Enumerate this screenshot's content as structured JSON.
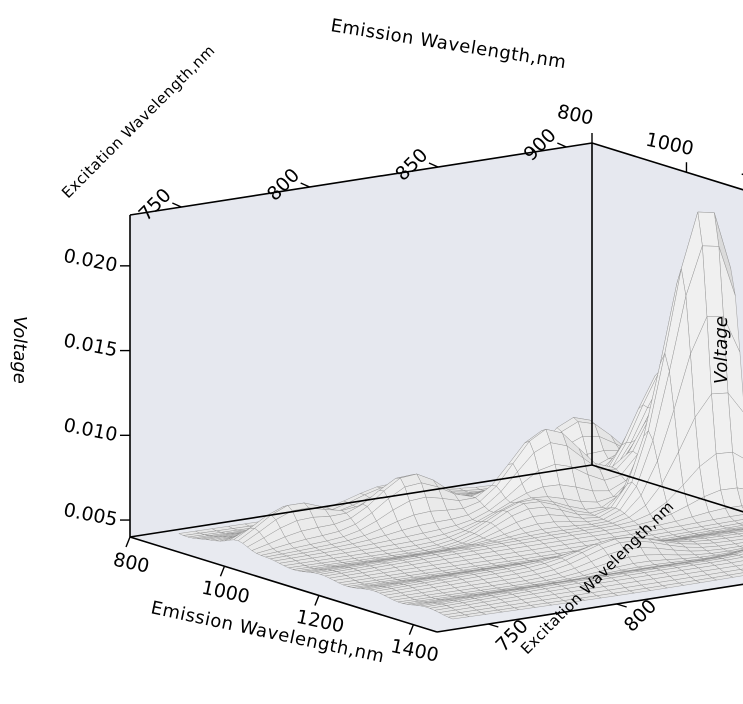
{
  "chart_data": {
    "type": "surface3d",
    "x": {
      "label": "Emission Wavelength,nm",
      "min": 800,
      "max": 1450,
      "ticks": [
        800,
        1000,
        1200,
        1400
      ],
      "tick_labels": [
        "800",
        "1000",
        "1200",
        "1400"
      ]
    },
    "y": {
      "label": "Excitation Wavelength,nm",
      "min": 730,
      "max": 910,
      "ticks": [
        750,
        800,
        850,
        900
      ],
      "tick_labels": [
        "750",
        "800",
        "850",
        "900"
      ]
    },
    "z": {
      "label": "Voltage",
      "min": 0.004,
      "max": 0.023,
      "ticks": [
        0.005,
        0.01,
        0.015,
        0.02
      ],
      "tick_labels": [
        "0.005",
        "0.010",
        "0.015",
        "0.020"
      ]
    },
    "baseline": 0.0046,
    "peaks": [
      {
        "emission_nm": 1120,
        "excitation_nm": 895,
        "voltage": 0.0225
      },
      {
        "emission_nm": 1055,
        "excitation_nm": 900,
        "voltage": 0.012
      },
      {
        "emission_nm": 1000,
        "excitation_nm": 905,
        "voltage": 0.012
      },
      {
        "emission_nm": 1040,
        "excitation_nm": 848,
        "voltage": 0.0095
      },
      {
        "emission_nm": 930,
        "excitation_nm": 880,
        "voltage": 0.0085
      },
      {
        "emission_nm": 1010,
        "excitation_nm": 800,
        "voltage": 0.008
      },
      {
        "emission_nm": 985,
        "excitation_nm": 760,
        "voltage": 0.007
      },
      {
        "emission_nm": 1370,
        "excitation_nm": 895,
        "voltage": 0.0065
      },
      {
        "emission_nm": 1100,
        "excitation_nm": 830,
        "voltage": 0.0065
      },
      {
        "emission_nm": 1300,
        "excitation_nm": 830,
        "voltage": 0.0058
      },
      {
        "emission_nm": 870,
        "excitation_nm": 820,
        "voltage": 0.0058
      }
    ],
    "surface_color": "#e6e6e6",
    "mesh_color": "#8a8a8a",
    "back_wall_color": "#e6e8ef",
    "floor_color": "#e8eaf0",
    "grid": false,
    "legend": "none"
  }
}
